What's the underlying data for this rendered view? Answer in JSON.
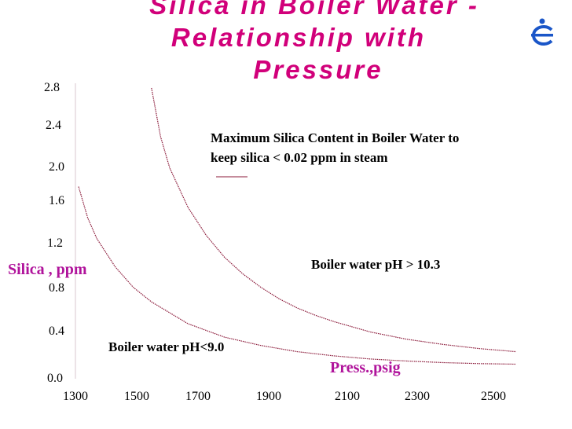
{
  "title_lines": [
    "Silica in Boiler Water -",
    "Relationship  with",
    "Pressure"
  ],
  "colors": {
    "title": "#d1007a",
    "axis_labels": "#b0139b",
    "curves": "#8b1a3a",
    "logo": "#1a56c8"
  },
  "logo_icon": "company-logo-icon",
  "chart_data": {
    "type": "line",
    "title": "Silica in Boiler Water - Relationship  with Pressure",
    "xlabel": "Press.,psig",
    "ylabel": "Silica , ppm",
    "x_ticks": [
      "1300",
      "1500",
      "1700",
      "1900",
      "2100",
      "2300",
      "2500"
    ],
    "y_ticks": [
      "0.0",
      "0.4",
      "0.8",
      "1.2",
      "1.6",
      "2.0",
      "2.4",
      "2.8"
    ],
    "xlim": [
      1300,
      2500
    ],
    "ylim": [
      0.0,
      2.8
    ],
    "grid": false,
    "annotations": {
      "header_line1": "Maximum Silica Content in Boiler Water to",
      "header_line2": "keep silica < 0.02 ppm in steam",
      "series_high": "Boiler  water pH > 10.3",
      "series_low": "Boiler  water  pH<9.0"
    },
    "series": [
      {
        "name": "Boiler  water pH > 10.3",
        "x": [
          1500,
          1525,
          1550,
          1600,
          1650,
          1700,
          1750,
          1800,
          1850,
          1900,
          1950,
          2000,
          2100,
          2200,
          2300,
          2400,
          2500
        ],
        "y": [
          2.8,
          2.33,
          2.03,
          1.65,
          1.38,
          1.17,
          1.01,
          0.88,
          0.77,
          0.68,
          0.61,
          0.55,
          0.45,
          0.38,
          0.33,
          0.29,
          0.26
        ]
      },
      {
        "name": "Boiler  water  pH<9.0",
        "x": [
          1300,
          1325,
          1350,
          1400,
          1450,
          1500,
          1600,
          1700,
          1800,
          1900,
          2000,
          2100,
          2200,
          2300,
          2400,
          2500
        ],
        "y": [
          1.85,
          1.55,
          1.35,
          1.08,
          0.88,
          0.74,
          0.53,
          0.4,
          0.32,
          0.26,
          0.22,
          0.19,
          0.17,
          0.155,
          0.145,
          0.14
        ]
      }
    ]
  }
}
